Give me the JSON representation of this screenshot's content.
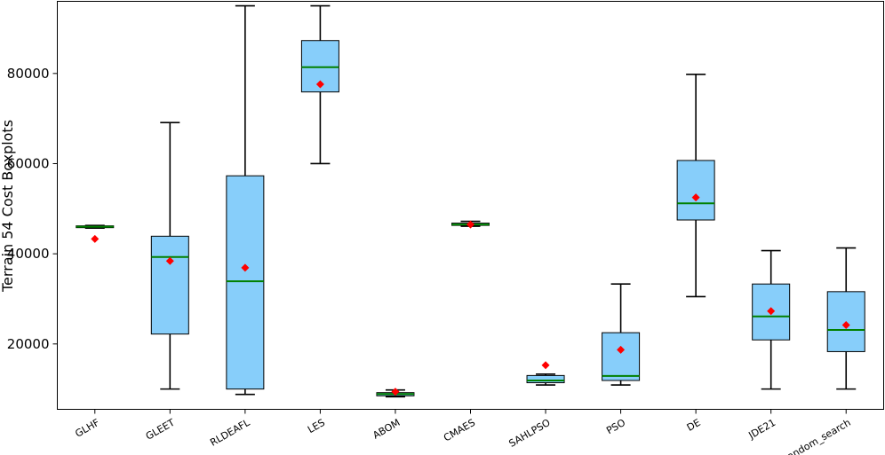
{
  "chart_data": {
    "type": "boxplot",
    "title": "",
    "xlabel": "",
    "ylabel": "Terrain 54 Cost Boxplots",
    "ylim": [
      5500,
      96000
    ],
    "yticks": [
      20000,
      40000,
      60000,
      80000
    ],
    "ytick_labels": [
      "20000",
      "40000",
      "60000",
      "80000"
    ],
    "grid": false,
    "colors": {
      "box_fill": "#87CEFA",
      "box_edge": "#000000",
      "median": "#008000",
      "mean": "#FF0000"
    },
    "categories": [
      "GLHF",
      "GLEET",
      "RLDEAFL",
      "LES",
      "ABOM",
      "CMAES",
      "SAHLPSO",
      "PSO",
      "DE",
      "JDE21",
      "Random_search"
    ],
    "boxes": [
      {
        "label": "GLHF",
        "whislo": 45700,
        "q1": 45800,
        "med": 46000,
        "q3": 46200,
        "whishi": 46300,
        "mean": 43300
      },
      {
        "label": "GLEET",
        "whislo": 10000,
        "q1": 22200,
        "med": 39300,
        "q3": 43900,
        "whishi": 69100,
        "mean": 38400
      },
      {
        "label": "RLDEAFL",
        "whislo": 8800,
        "q1": 10000,
        "med": 33900,
        "q3": 57300,
        "whishi": 95000,
        "mean": 36900
      },
      {
        "label": "LES",
        "whislo": 60000,
        "q1": 75900,
        "med": 81400,
        "q3": 87300,
        "whishi": 95000,
        "mean": 77600
      },
      {
        "label": "ABOM",
        "whislo": 8300,
        "q1": 8500,
        "med": 8900,
        "q3": 9200,
        "whishi": 9800,
        "mean": 9400
      },
      {
        "label": "CMAES",
        "whislo": 46100,
        "q1": 46300,
        "med": 46500,
        "q3": 46800,
        "whishi": 47200,
        "mean": 46500
      },
      {
        "label": "SAHLPSO",
        "whislo": 10900,
        "q1": 11400,
        "med": 11900,
        "q3": 13000,
        "whishi": 13300,
        "mean": 15300
      },
      {
        "label": "PSO",
        "whislo": 10900,
        "q1": 11900,
        "med": 12900,
        "q3": 22500,
        "whishi": 33300,
        "mean": 18700
      },
      {
        "label": "DE",
        "whislo": 30500,
        "q1": 47500,
        "med": 51200,
        "q3": 60700,
        "whishi": 79800,
        "mean": 52500
      },
      {
        "label": "JDE21",
        "whislo": 10000,
        "q1": 20900,
        "med": 26100,
        "q3": 33300,
        "whishi": 40700,
        "mean": 27300
      },
      {
        "label": "Random_search",
        "whislo": 10000,
        "q1": 18300,
        "med": 23100,
        "q3": 31600,
        "whishi": 41300,
        "mean": 24200
      }
    ]
  }
}
